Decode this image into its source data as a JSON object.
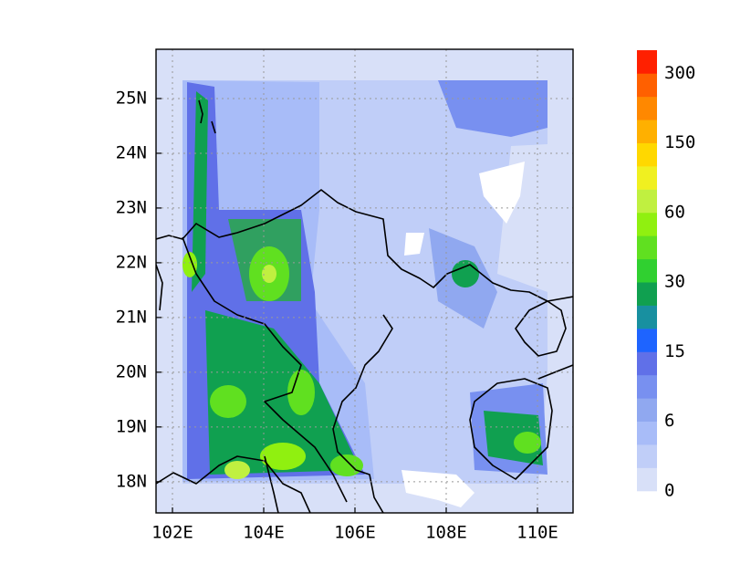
{
  "map": {
    "xlim": [
      101.64,
      110.78
    ],
    "ylim": [
      17.43,
      25.9
    ],
    "xticks": [
      {
        "value": 102,
        "label": "102E"
      },
      {
        "value": 104,
        "label": "104E"
      },
      {
        "value": 106,
        "label": "106E"
      },
      {
        "value": 108,
        "label": "108E"
      },
      {
        "value": 110,
        "label": "110E"
      }
    ],
    "yticks": [
      {
        "value": 18,
        "label": "18N"
      },
      {
        "value": 19,
        "label": "19N"
      },
      {
        "value": 20,
        "label": "20N"
      },
      {
        "value": 21,
        "label": "21N"
      },
      {
        "value": 22,
        "label": "22N"
      },
      {
        "value": 23,
        "label": "23N"
      },
      {
        "value": 24,
        "label": "24N"
      },
      {
        "value": 25,
        "label": "25N"
      }
    ],
    "colorbar": {
      "colors": [
        "#d8e0f8",
        "#c0cef8",
        "#a8bcf8",
        "#90a8f0",
        "#7890f0",
        "#6070e8",
        "#1e64ff",
        "#1890a0",
        "#10a050",
        "#30d030",
        "#60e020",
        "#90f010",
        "#c0f040",
        "#f0f020",
        "#ffd800",
        "#ffb000",
        "#ff8800",
        "#ff6000",
        "#ff2000"
      ],
      "labels": [
        0,
        6,
        15,
        30,
        60,
        150,
        300
      ]
    }
  }
}
